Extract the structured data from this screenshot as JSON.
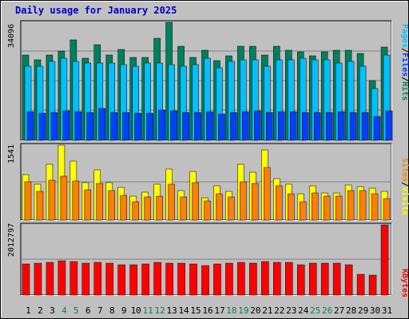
{
  "title": "Daily usage for January 2025",
  "colors": {
    "hits": "#00805c",
    "files": "#00c0ff",
    "pages": "#0040ff",
    "visits": "#ffff00",
    "sites": "#ff8000",
    "kbytes": "#ff0000",
    "weekend": "#00805c",
    "weekday": "#000000"
  },
  "chart_data": {
    "type": "bar",
    "categories": [
      "1",
      "2",
      "3",
      "4",
      "5",
      "6",
      "7",
      "8",
      "9",
      "10",
      "11",
      "12",
      "13",
      "14",
      "15",
      "16",
      "17",
      "18",
      "19",
      "20",
      "21",
      "22",
      "23",
      "24",
      "25",
      "26",
      "27",
      "28",
      "29",
      "30",
      "31"
    ],
    "weekend_days": [
      "4",
      "5",
      "11",
      "12",
      "18",
      "19",
      "25",
      "26"
    ],
    "panels": [
      {
        "id": "hits-files-pages",
        "tick_label": "34096",
        "ymax": 41000,
        "legend": [
          {
            "text": "Pages",
            "color": "#00c0ff"
          },
          {
            "text": "/",
            "color": "#000000"
          },
          {
            "text": "Files",
            "color": "#0040ff"
          },
          {
            "text": "/",
            "color": "#000000"
          },
          {
            "text": "Hits",
            "color": "#00805c"
          }
        ],
        "series": [
          {
            "name": "Hits",
            "color": "#00805c",
            "values": [
              29600,
              28000,
              29600,
              31000,
              35000,
              28600,
              33200,
              29600,
              31500,
              28900,
              28900,
              35500,
              41000,
              32800,
              28900,
              31300,
              27800,
              29300,
              32600,
              32600,
              29600,
              32600,
              31300,
              30800,
              29300,
              30800,
              31300,
              31300,
              30300,
              20800,
              32300
            ]
          },
          {
            "name": "Files",
            "color": "#00c0ff",
            "values": [
              25800,
              25800,
              27400,
              28600,
              27400,
              26900,
              26900,
              26900,
              26300,
              25800,
              26900,
              26900,
              26300,
              25800,
              26300,
              28600,
              25300,
              27400,
              28100,
              28100,
              25800,
              28100,
              28100,
              28600,
              28100,
              28100,
              26900,
              27400,
              25800,
              18100,
              29600
            ]
          },
          {
            "name": "Pages",
            "color": "#0040ff",
            "values": [
              10000,
              9300,
              9800,
              10300,
              10000,
              9600,
              11000,
              9600,
              9800,
              9300,
              9300,
              10500,
              10300,
              9800,
              9800,
              10000,
              9100,
              9600,
              10000,
              10300,
              9600,
              10000,
              10000,
              9800,
              9600,
              9800,
              10000,
              9800,
              9600,
              8300,
              10300
            ]
          }
        ]
      },
      {
        "id": "visits-sites",
        "tick_label": "1541",
        "ymax": 1810,
        "legend": [
          {
            "text": "Sites",
            "color": "#ff8000"
          },
          {
            "text": "/",
            "color": "#000000"
          },
          {
            "text": "Visits",
            "color": "#ffff00"
          }
        ],
        "series": [
          {
            "name": "Visits",
            "color": "#ffff00",
            "values": [
              1100,
              860,
              1340,
              1810,
              1420,
              900,
              1220,
              910,
              790,
              580,
              670,
              870,
              1230,
              710,
              1180,
              530,
              830,
              700,
              1340,
              1150,
              1690,
              1010,
              870,
              630,
              820,
              650,
              660,
              850,
              810,
              770,
              690
            ]
          },
          {
            "name": "Sites",
            "color": "#ff8000",
            "values": [
              920,
              700,
              970,
              1060,
              950,
              730,
              880,
              720,
              590,
              450,
              560,
              570,
              860,
              550,
              910,
              460,
              630,
              560,
              920,
              880,
              1280,
              820,
              630,
              440,
              650,
              570,
              570,
              720,
              710,
              630,
              520
            ]
          }
        ]
      },
      {
        "id": "kbytes",
        "tick_label": "2012797",
        "ymax": 2640000,
        "legend": [
          {
            "text": "KBytes",
            "color": "#ff0000"
          }
        ],
        "series": [
          {
            "name": "KBytes",
            "color": "#ff0000",
            "values": [
              1170000,
              1190000,
              1240000,
              1290000,
              1270000,
              1190000,
              1230000,
              1190000,
              1140000,
              1140000,
              1170000,
              1240000,
              1210000,
              1190000,
              1170000,
              1120000,
              1170000,
              1190000,
              1240000,
              1210000,
              1270000,
              1240000,
              1240000,
              1140000,
              1210000,
              1210000,
              1190000,
              1140000,
              790000,
              740000,
              2640000
            ]
          }
        ]
      }
    ]
  }
}
